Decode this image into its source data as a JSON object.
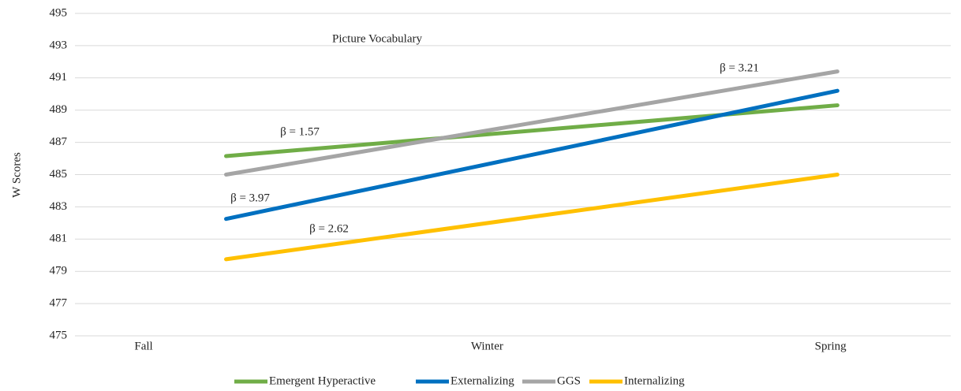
{
  "chart_data": {
    "type": "line",
    "title": "Picture Vocabulary",
    "y_label": "W Scores",
    "xticks": [
      {
        "value": 0,
        "label": "Fall"
      },
      {
        "value": 1,
        "label": "Winter"
      },
      {
        "value": 2,
        "label": "Spring"
      }
    ],
    "xlim": [
      -0.2,
      2.35
    ],
    "x": [
      0.24,
      2.02
    ],
    "ylim": [
      475,
      495
    ],
    "yticks": [
      475,
      477,
      479,
      481,
      483,
      485,
      487,
      489,
      491,
      493,
      495
    ],
    "grid": true,
    "legend": "bottom",
    "series": [
      {
        "name": "Emergent Hyperactive",
        "color": "#70ad47",
        "values": [
          486.15,
          489.3
        ]
      },
      {
        "name": "Externalizing",
        "color": "#0070c0",
        "values": [
          482.25,
          490.2
        ]
      },
      {
        "name": "GGS",
        "color": "#a5a5a5",
        "values": [
          485.0,
          491.4
        ]
      },
      {
        "name": "Internalizing",
        "color": "#ffc000",
        "values": [
          479.75,
          485.0
        ]
      }
    ],
    "annotations": [
      "β = 1.57",
      "β = 3.97",
      "β = 3.21",
      "β = 2.62"
    ]
  }
}
